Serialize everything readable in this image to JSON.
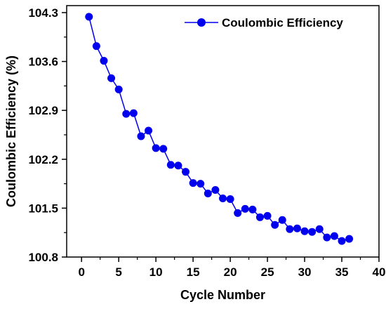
{
  "chart_data": {
    "type": "scatter",
    "xlabel": "Cycle Number",
    "ylabel": "Coulombic Efficiency (%)",
    "xlim": [
      -2,
      40
    ],
    "ylim": [
      100.8,
      104.4
    ],
    "xticks": [
      0,
      5,
      10,
      15,
      20,
      25,
      30,
      35,
      40
    ],
    "yticks": [
      100.8,
      101.5,
      102.2,
      102.9,
      103.6,
      104.3
    ],
    "xtick_labels": [
      "0",
      "5",
      "10",
      "15",
      "20",
      "25",
      "30",
      "35",
      "40"
    ],
    "ytick_labels": [
      "100.8",
      "101.5",
      "102.2",
      "102.9",
      "103.6",
      "104.3"
    ],
    "legend_position": "top-right",
    "grid": false,
    "series": [
      {
        "name": "Coulombic Efficiency",
        "color": "#0000ee",
        "marker": "circle",
        "line": true,
        "x": [
          1,
          2,
          3,
          4,
          5,
          6,
          7,
          8,
          9,
          10,
          11,
          12,
          13,
          14,
          15,
          16,
          17,
          18,
          19,
          20,
          21,
          22,
          23,
          24,
          25,
          26,
          27,
          28,
          29,
          30,
          31,
          32,
          33,
          34,
          35,
          36
        ],
        "y": [
          104.24,
          103.82,
          103.61,
          103.36,
          103.2,
          102.85,
          102.86,
          102.53,
          102.61,
          102.36,
          102.35,
          102.12,
          102.11,
          102.02,
          101.86,
          101.85,
          101.71,
          101.76,
          101.64,
          101.63,
          101.43,
          101.49,
          101.48,
          101.37,
          101.39,
          101.26,
          101.33,
          101.2,
          101.21,
          101.17,
          101.16,
          101.2,
          101.08,
          101.1,
          101.03,
          101.06
        ]
      }
    ]
  }
}
